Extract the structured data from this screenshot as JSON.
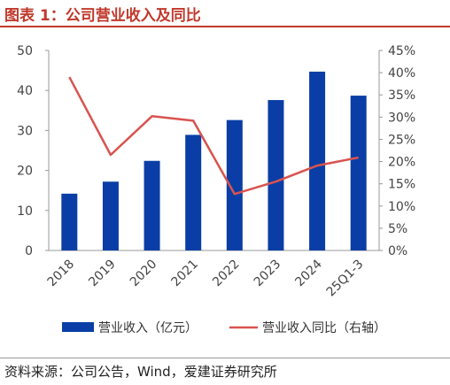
{
  "title": "图表 1：公司营业收入及同比",
  "source": "资料来源：公司公告，Wind，爱建证券研究所",
  "colors": {
    "bar": "#0a3ea6",
    "line": "#d9534f",
    "title": "#c0392b"
  },
  "chart_data": {
    "type": "bar",
    "categories": [
      "2018",
      "2019",
      "2020",
      "2021",
      "2022",
      "2023",
      "2024",
      "25Q1-3"
    ],
    "series": [
      {
        "name": "营业收入（亿元）",
        "type": "bar",
        "axis": "left",
        "values": [
          14.2,
          17.2,
          22.4,
          28.9,
          32.6,
          37.6,
          44.7,
          38.7
        ]
      },
      {
        "name": "营业收入同比（右轴）",
        "type": "line",
        "axis": "right",
        "values": [
          0.39,
          0.215,
          0.302,
          0.292,
          0.127,
          0.155,
          0.191,
          0.209
        ]
      }
    ],
    "ylim_left": [
      0,
      50
    ],
    "yticks_left": [
      "0",
      "10",
      "20",
      "30",
      "40",
      "50"
    ],
    "ylim_right": [
      0,
      0.45
    ],
    "yticks_right": [
      "0%",
      "5%",
      "10%",
      "15%",
      "20%",
      "25%",
      "30%",
      "35%",
      "40%",
      "45%"
    ],
    "grid": false,
    "legend_position": "bottom"
  }
}
